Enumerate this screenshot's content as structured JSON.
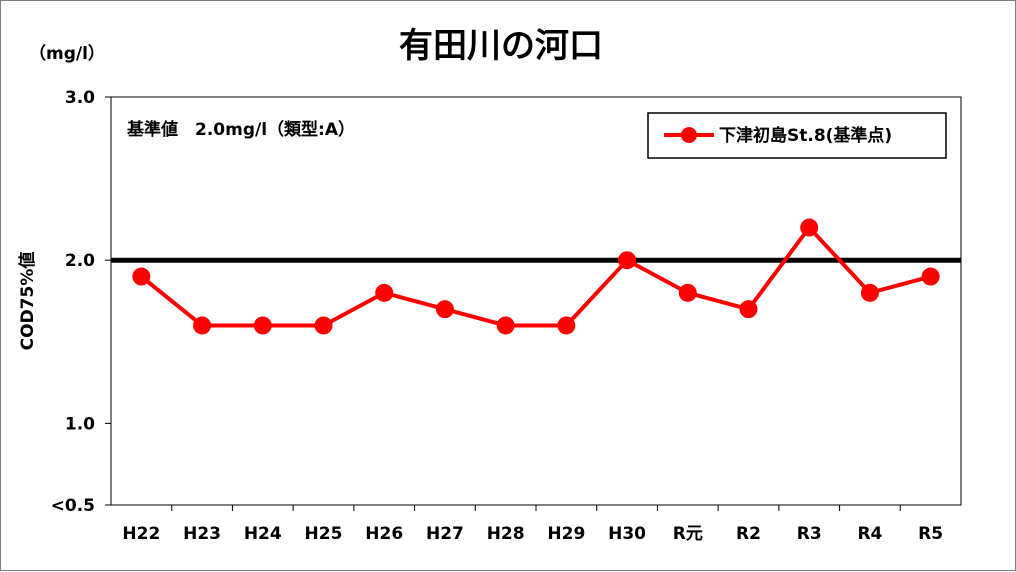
{
  "chart_data": {
    "type": "line",
    "title": "有田川の河口",
    "unit_label": "（mg/l）",
    "ylabel": "COD75%値",
    "categories": [
      "H22",
      "H23",
      "H24",
      "H25",
      "H26",
      "H27",
      "H28",
      "H29",
      "H30",
      "R元",
      "R2",
      "R3",
      "R4",
      "R5"
    ],
    "y_tick_labels": [
      "<0.5",
      "1.0",
      "2.0",
      "3.0"
    ],
    "y_tick_values": [
      0.5,
      1.0,
      2.0,
      3.0
    ],
    "ylim": [
      0.5,
      3.0
    ],
    "series": [
      {
        "name": "下津初島St.8(基準点)",
        "color": "#ff0000",
        "values": [
          1.9,
          1.6,
          1.6,
          1.6,
          1.8,
          1.7,
          1.6,
          1.6,
          2.0,
          1.8,
          1.7,
          2.2,
          1.8,
          1.9
        ]
      }
    ],
    "reference_line": {
      "value": 2.0,
      "color": "#000000"
    },
    "annotation": "基準値　2.0mg/l（類型:A）",
    "legend_position": "top-right",
    "grid": false
  }
}
